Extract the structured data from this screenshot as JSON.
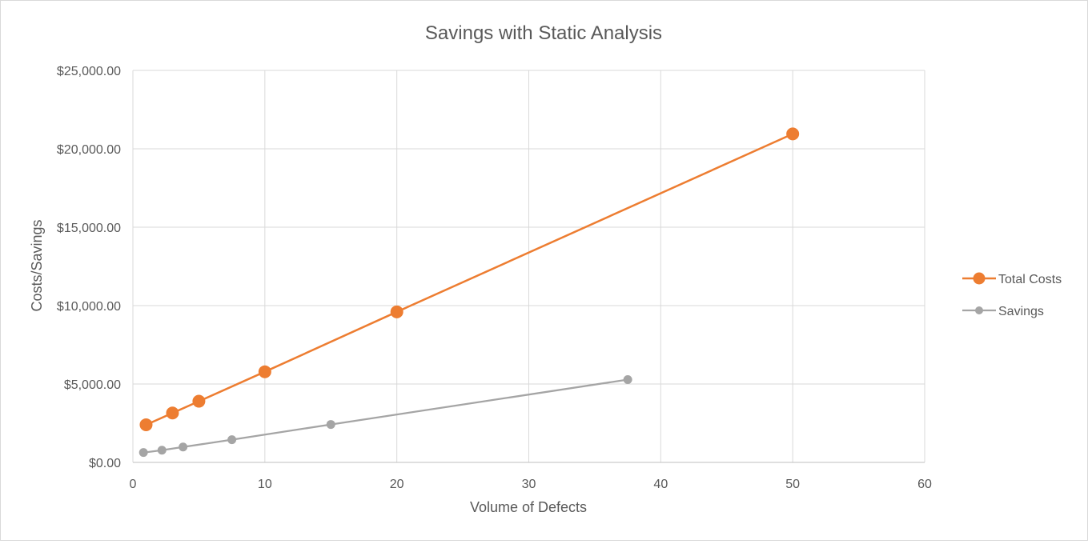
{
  "chart_data": {
    "type": "scatter",
    "title": "Savings with Static Analysis",
    "xlabel": "Volume of Defects",
    "ylabel": "Costs/Savings",
    "xlim": [
      0,
      60
    ],
    "ylim": [
      0,
      25000
    ],
    "x_ticks": [
      0,
      10,
      20,
      30,
      40,
      50,
      60
    ],
    "y_ticks": [
      0,
      5000,
      10000,
      15000,
      20000,
      25000
    ],
    "x_tick_labels": [
      "0",
      "10",
      "20",
      "30",
      "40",
      "50",
      "60"
    ],
    "y_tick_labels": [
      "$0.00",
      "$5,000.00",
      "$10,000.00",
      "$15,000.00",
      "$20,000.00",
      "$25,000.00"
    ],
    "grid": true,
    "legend_position": "right",
    "series": [
      {
        "name": "Total Costs",
        "color": "#ed7d31",
        "marker": "large-circle",
        "points": [
          {
            "x": 1,
            "y": 2400
          },
          {
            "x": 3,
            "y": 3150
          },
          {
            "x": 5,
            "y": 3900
          },
          {
            "x": 10,
            "y": 5780
          },
          {
            "x": 20,
            "y": 9600
          },
          {
            "x": 50,
            "y": 20950
          }
        ]
      },
      {
        "name": "Savings",
        "color": "#a5a5a5",
        "marker": "small-circle",
        "points": [
          {
            "x": 0.8,
            "y": 630
          },
          {
            "x": 2.2,
            "y": 780
          },
          {
            "x": 3.8,
            "y": 980
          },
          {
            "x": 7.5,
            "y": 1450
          },
          {
            "x": 15,
            "y": 2420
          },
          {
            "x": 37.5,
            "y": 5280
          }
        ]
      }
    ]
  }
}
